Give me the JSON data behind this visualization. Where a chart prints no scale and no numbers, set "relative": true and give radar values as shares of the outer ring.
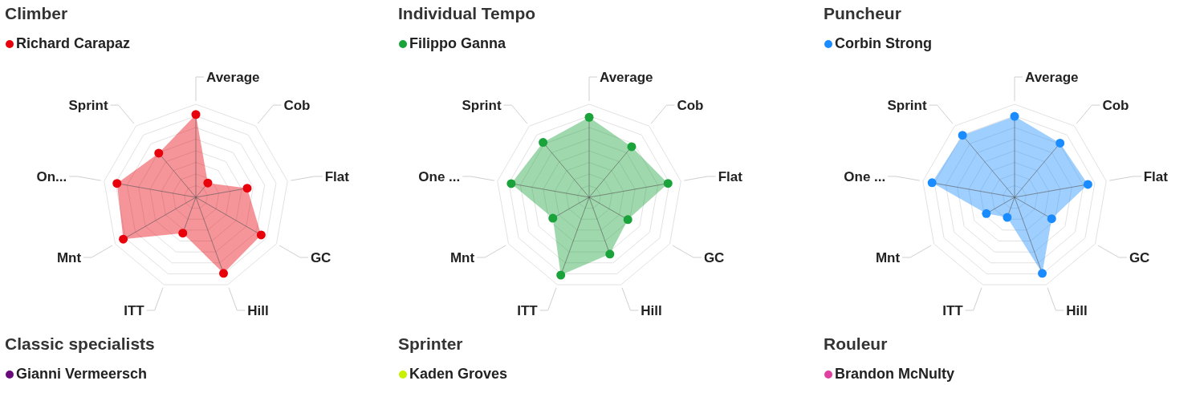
{
  "chart_data": [
    {
      "type": "radar",
      "title": "Climber",
      "relative": true,
      "grid": true,
      "legend": "top left",
      "marker": "circle",
      "categories": [
        "Average",
        "Cob",
        "Flat",
        "GC",
        "Hill",
        "ITT",
        "Mnt",
        "On...",
        "Sprint"
      ],
      "series": [
        {
          "name": "Richard Carapaz",
          "color": "#e8000b",
          "values": [
            0.89,
            0.2,
            0.56,
            0.81,
            0.87,
            0.41,
            0.9,
            0.86,
            0.62
          ]
        }
      ]
    },
    {
      "type": "radar",
      "title": "Individual Tempo",
      "relative": true,
      "grid": true,
      "legend": "top left",
      "marker": "circle",
      "categories": [
        "Average",
        "Cob",
        "Flat",
        "GC",
        "Hill",
        "ITT",
        "Mnt",
        "One ...",
        "Sprint"
      ],
      "series": [
        {
          "name": "Filippo Ganna",
          "color": "#1aa33a",
          "values": [
            0.86,
            0.71,
            0.86,
            0.48,
            0.65,
            0.89,
            0.45,
            0.85,
            0.77
          ]
        }
      ]
    },
    {
      "type": "radar",
      "title": "Puncheur",
      "relative": true,
      "grid": true,
      "legend": "top left",
      "marker": "circle",
      "categories": [
        "Average",
        "Cob",
        "Flat",
        "GC",
        "Hill",
        "ITT",
        "Mnt",
        "One ...",
        "Sprint"
      ],
      "series": [
        {
          "name": "Corbin Strong",
          "color": "#1a8cff",
          "values": [
            0.87,
            0.76,
            0.8,
            0.46,
            0.87,
            0.23,
            0.35,
            0.9,
            0.87
          ]
        }
      ]
    },
    {
      "type": "other",
      "title": "Classic specialists",
      "legend": "top left",
      "series": [
        {
          "name": "Gianni Vermeersch",
          "color": "#6a0a7a"
        }
      ]
    },
    {
      "type": "other",
      "title": "Sprinter",
      "legend": "top left",
      "series": [
        {
          "name": "Kaden Groves",
          "color": "#c8f000"
        }
      ]
    },
    {
      "type": "other",
      "title": "Rouleur",
      "legend": "top left",
      "series": [
        {
          "name": "Brandon McNulty",
          "color": "#e040a0"
        }
      ]
    }
  ]
}
